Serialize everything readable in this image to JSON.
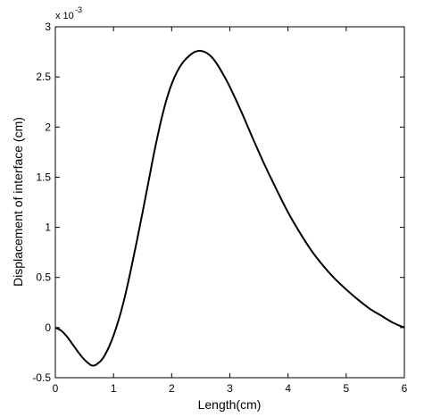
{
  "chart_data": {
    "type": "line",
    "title": "",
    "xlabel": "Length(cm)",
    "ylabel": "Displacement of interface (cm)",
    "y_multiplier_label": "x 10",
    "y_multiplier_exponent": "-3",
    "xlim": [
      0,
      6
    ],
    "ylim": [
      -0.5,
      3
    ],
    "x_ticks": [
      0,
      1,
      2,
      3,
      4,
      5,
      6
    ],
    "x_tick_labels": [
      "0",
      "1",
      "2",
      "3",
      "4",
      "5",
      "6"
    ],
    "y_ticks": [
      -0.5,
      0,
      0.5,
      1,
      1.5,
      2,
      2.5,
      3
    ],
    "y_tick_labels": [
      "-0.5",
      "0",
      "0.5",
      "1",
      "1.5",
      "2",
      "2.5",
      "3"
    ],
    "grid": false,
    "legend": "none",
    "line_color": "#000000",
    "series": [
      {
        "x": [
          0,
          0.1,
          0.2,
          0.3,
          0.4,
          0.5,
          0.6,
          0.65,
          0.7,
          0.8,
          0.9,
          1.0,
          1.1,
          1.2,
          1.3,
          1.4,
          1.5,
          1.6,
          1.7,
          1.8,
          1.9,
          2.0,
          2.1,
          2.2,
          2.3,
          2.4,
          2.5,
          2.6,
          2.7,
          2.8,
          2.9,
          3.0,
          3.2,
          3.4,
          3.6,
          3.8,
          4.0,
          4.2,
          4.4,
          4.6,
          4.8,
          5.0,
          5.2,
          5.4,
          5.6,
          5.8,
          6.0
        ],
        "y": [
          0,
          -0.03,
          -0.09,
          -0.17,
          -0.25,
          -0.32,
          -0.37,
          -0.38,
          -0.37,
          -0.32,
          -0.22,
          -0.08,
          0.1,
          0.32,
          0.58,
          0.86,
          1.15,
          1.45,
          1.75,
          2.02,
          2.25,
          2.43,
          2.56,
          2.65,
          2.71,
          2.75,
          2.76,
          2.74,
          2.69,
          2.61,
          2.51,
          2.4,
          2.15,
          1.88,
          1.62,
          1.38,
          1.15,
          0.95,
          0.77,
          0.62,
          0.49,
          0.38,
          0.28,
          0.19,
          0.12,
          0.05,
          0
        ]
      }
    ]
  }
}
